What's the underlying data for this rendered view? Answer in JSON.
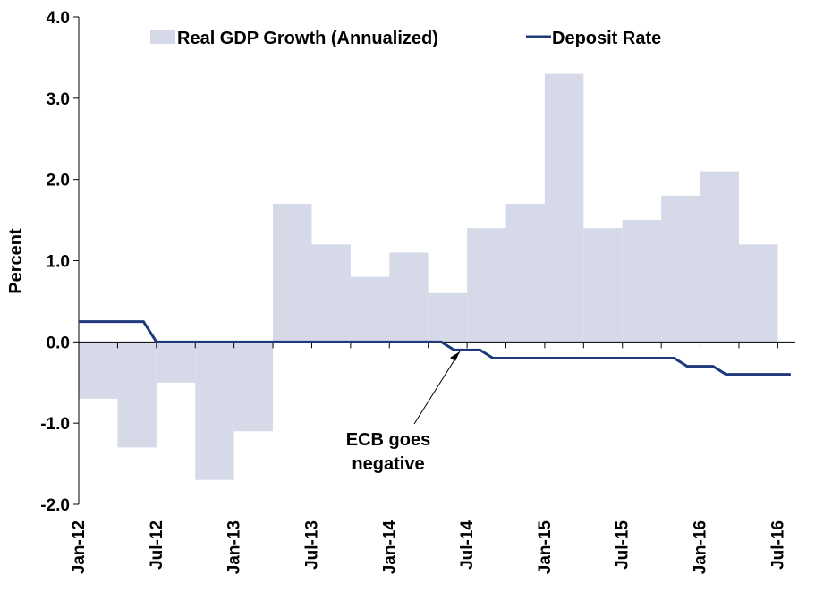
{
  "chart_data": {
    "type": "bar+line",
    "title": "",
    "ylabel": "Percent",
    "xlabel": "",
    "ylim": [
      -2.0,
      4.0
    ],
    "y_ticks": [
      "4.0",
      "3.0",
      "2.0",
      "1.0",
      "0.0",
      "-1.0",
      "-2.0"
    ],
    "x_tick_labels": [
      "Jan-12",
      "Jul-12",
      "Jan-13",
      "Jul-13",
      "Jan-14",
      "Jul-14",
      "Jan-15",
      "Jul-15",
      "Jan-16",
      "Jul-16"
    ],
    "legend_position": "top",
    "colors": {
      "bars": "#D6DAE8",
      "line": "#1F3A7A",
      "axis": "#000000"
    },
    "series": [
      {
        "name": "Real GDP Growth (Annualized)",
        "type": "bar",
        "quarters": [
          "2012-Q1",
          "2012-Q2",
          "2012-Q3",
          "2012-Q4",
          "2013-Q1",
          "2013-Q2",
          "2013-Q3",
          "2013-Q4",
          "2014-Q1",
          "2014-Q2",
          "2014-Q3",
          "2014-Q4",
          "2015-Q1",
          "2015-Q2",
          "2015-Q3",
          "2015-Q4",
          "2016-Q1",
          "2016-Q2"
        ],
        "values": [
          -0.7,
          -1.3,
          -0.5,
          -1.7,
          -1.1,
          1.7,
          1.2,
          0.8,
          1.1,
          0.6,
          1.4,
          1.7,
          3.3,
          1.4,
          1.5,
          1.8,
          2.1,
          1.2
        ]
      },
      {
        "name": "Deposit Rate",
        "type": "line",
        "steps": [
          {
            "date": "2012-01",
            "value": 0.25
          },
          {
            "date": "2012-07",
            "value": 0.0
          },
          {
            "date": "2014-06",
            "value": -0.1
          },
          {
            "date": "2014-09",
            "value": -0.2
          },
          {
            "date": "2015-12",
            "value": -0.3
          },
          {
            "date": "2016-03",
            "value": -0.4
          },
          {
            "date": "2016-08",
            "value": -0.4
          }
        ]
      }
    ],
    "annotation": {
      "lines": [
        "ECB goes",
        "negative"
      ],
      "points_to": "2014-06"
    }
  }
}
